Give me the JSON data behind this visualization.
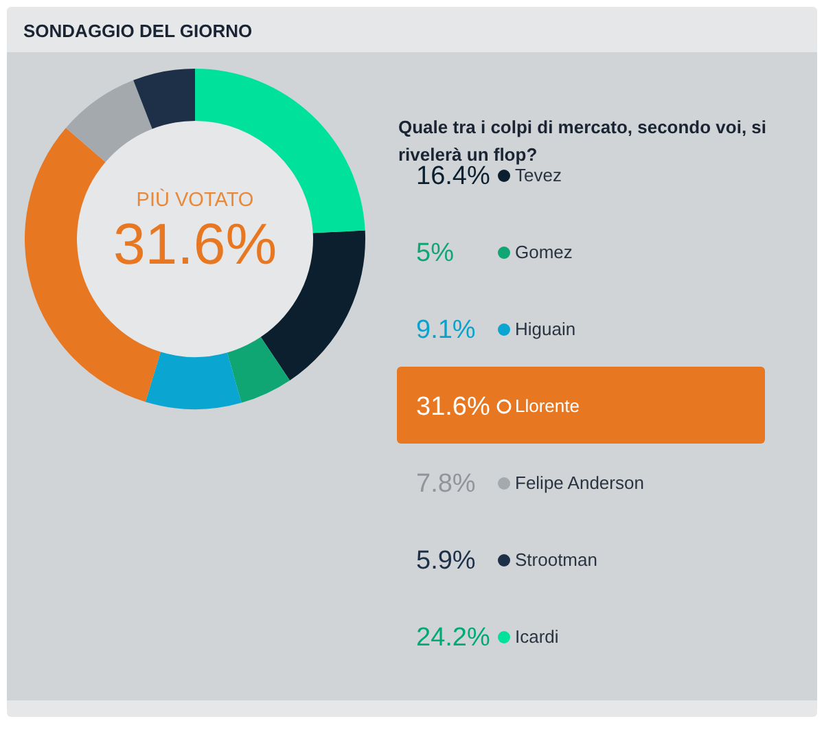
{
  "chart_data": {
    "type": "donut",
    "title": "SONDAGGIO DEL GIORNO",
    "subtitle": "Quale tra i colpi di mercato, secondo voi, si rivelerà un flop?",
    "categories": [
      "Tevez",
      "Gomez",
      "Higuain",
      "Llorente",
      "Felipe Anderson",
      "Strootman",
      "Icardi"
    ],
    "values": [
      16.4,
      5,
      9.1,
      31.6,
      7.8,
      5.9,
      24.2
    ],
    "colors": [
      "#0b1f2e",
      "#10a673",
      "#0aa5d0",
      "#e87722",
      "#a4a9ad",
      "#1e2f48",
      "#00e29b"
    ],
    "value_labels": [
      "16.4%",
      "5%",
      "9.1%",
      "31.6%",
      "7.8%",
      "5.9%",
      "24.2%"
    ],
    "annotations": [
      "PIÙ VOTATO",
      "31.6%"
    ],
    "legend": "right"
  }
}
